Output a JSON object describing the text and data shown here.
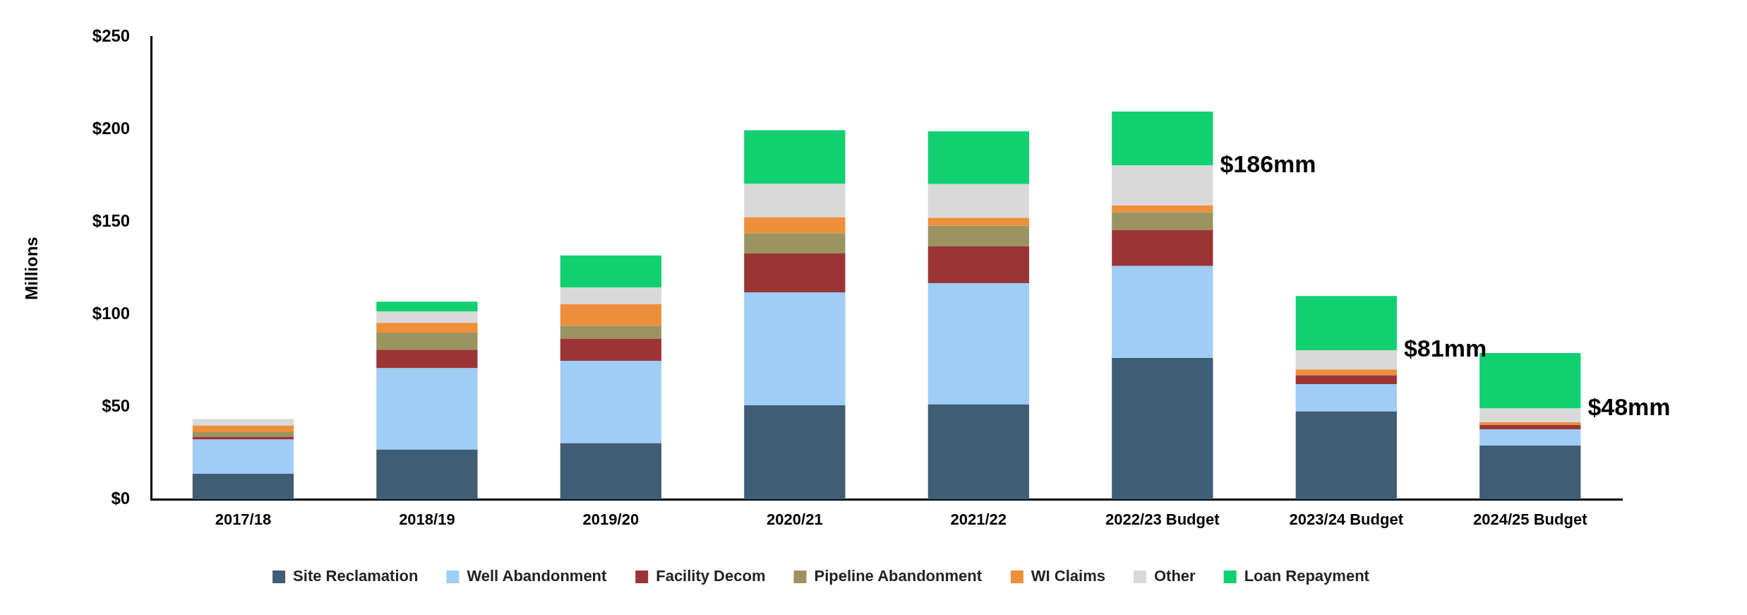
{
  "chart_data": {
    "type": "bar",
    "stacked": true,
    "ylabel": "Millions",
    "categories": [
      "2017/18",
      "2018/19",
      "2019/20",
      "2020/21",
      "2021/22",
      "2022/23 Budget",
      "2023/24 Budget",
      "2024/25 Budget"
    ],
    "series": [
      {
        "name": "Site Reclamation",
        "color": "#3f5d74",
        "values": [
          14,
          27,
          30.5,
          51,
          51.5,
          76.5,
          47.6,
          29.2
        ]
      },
      {
        "name": "Well Abandonment",
        "color": "#9fcdf5",
        "values": [
          18.5,
          44,
          44.5,
          61,
          65.5,
          49.7,
          14.8,
          8.8
        ]
      },
      {
        "name": "Facility Decom",
        "color": "#9b3535",
        "values": [
          1.5,
          10,
          12,
          21,
          20,
          19.6,
          4.8,
          2.4
        ]
      },
      {
        "name": "Pipeline Abandonment",
        "color": "#9a9560",
        "values": [
          2.5,
          9.3,
          7,
          11,
          11,
          9.4,
          0,
          0
        ]
      },
      {
        "name": "WI Claims",
        "color": "#ee8f3c",
        "values": [
          3.5,
          5.2,
          11.6,
          8.6,
          4.3,
          3.8,
          3.1,
          1.4
        ]
      },
      {
        "name": "Other",
        "color": "#d9d9d9",
        "values": [
          3.5,
          6.2,
          9,
          18,
          18.2,
          21.6,
          10.4,
          7.5
        ]
      },
      {
        "name": "Loan Repayment",
        "color": "#10d070",
        "values": [
          0,
          5.3,
          17.4,
          29,
          28.5,
          29.1,
          29.3,
          29.9
        ]
      }
    ],
    "ylim": [
      0,
      250
    ],
    "yticks": [
      {
        "value": 0,
        "label": "$0"
      },
      {
        "value": 50,
        "label": "$50"
      },
      {
        "value": 100,
        "label": "$100"
      },
      {
        "value": 150,
        "label": "$150"
      },
      {
        "value": 200,
        "label": "$200"
      },
      {
        "value": 250,
        "label": "$250"
      }
    ],
    "grid": false,
    "legend": "bottom",
    "annotations": [
      "$186mm",
      "$81mm",
      "$48mm"
    ]
  }
}
